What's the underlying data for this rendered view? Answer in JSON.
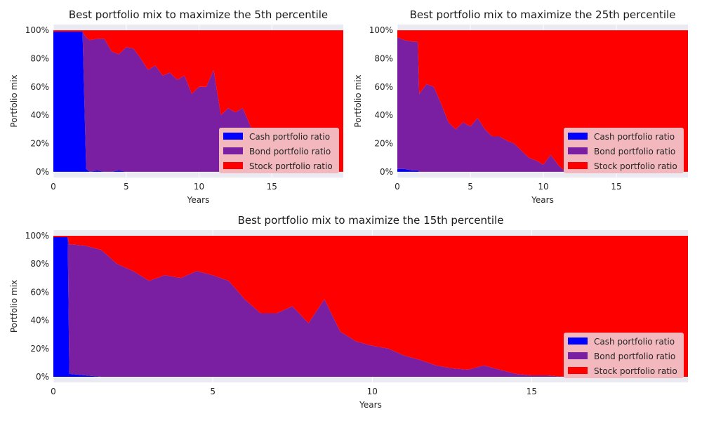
{
  "colors": {
    "background": "#eaeaf2",
    "grid": "#ffffff",
    "cash": "#0000ff",
    "bond": "#7a1fa2",
    "stock": "#ff0000",
    "legend_bg": "#f2b8bd"
  },
  "legend": {
    "placement": "lower right",
    "labels": [
      "Cash portfolio ratio",
      "Bond portfolio ratio",
      "Stock portfolio ratio"
    ]
  },
  "chart_data": [
    {
      "type": "area",
      "stacked": true,
      "title": "Best portfolio mix to maximize the 5th percentile",
      "xlabel": "Years",
      "ylabel": "Portfolio mix",
      "xlim": [
        0,
        19.9
      ],
      "ylim": [
        -0.04,
        1.04
      ],
      "xticks": [
        0,
        5,
        10,
        15
      ],
      "yticks": [
        "0%",
        "20%",
        "40%",
        "60%",
        "80%",
        "100%"
      ],
      "grid": true,
      "legend": "lower right",
      "x": [
        0,
        0.5,
        1.0,
        1.5,
        2.0,
        2.25,
        2.5,
        3.0,
        3.5,
        4.0,
        4.5,
        5.0,
        5.5,
        6.0,
        6.5,
        7.0,
        7.5,
        8.0,
        8.5,
        9.0,
        9.5,
        10.0,
        10.5,
        11.0,
        11.5,
        12.0,
        12.5,
        13.0,
        13.5,
        14.0,
        14.5,
        15.0,
        15.5,
        16.0,
        17.0,
        18.0,
        19.0,
        19.9
      ],
      "series": [
        {
          "name": "Cash portfolio ratio",
          "values": [
            0.99,
            0.99,
            0.99,
            0.99,
            0.99,
            0.02,
            0,
            0.01,
            0,
            0,
            0.01,
            0,
            0,
            0,
            0,
            0,
            0,
            0,
            0,
            0,
            0,
            0,
            0,
            0,
            0,
            0,
            0,
            0,
            0,
            0,
            0,
            0,
            0,
            0,
            0,
            0,
            0,
            0
          ]
        },
        {
          "name": "Bond portfolio ratio",
          "values": [
            0,
            0,
            0,
            0,
            0,
            0.93,
            0.93,
            0.93,
            0.94,
            0.85,
            0.82,
            0.88,
            0.87,
            0.8,
            0.72,
            0.75,
            0.68,
            0.7,
            0.65,
            0.68,
            0.55,
            0.6,
            0.6,
            0.72,
            0.4,
            0.45,
            0.42,
            0.45,
            0.33,
            0.22,
            0.12,
            0.05,
            0.08,
            0,
            0,
            0,
            0,
            0
          ]
        },
        {
          "name": "Stock portfolio ratio",
          "values": [
            0.01,
            0.01,
            0.01,
            0.01,
            0.01,
            0.05,
            0.07,
            0.06,
            0.06,
            0.15,
            0.17,
            0.12,
            0.13,
            0.2,
            0.28,
            0.25,
            0.32,
            0.3,
            0.35,
            0.32,
            0.45,
            0.4,
            0.4,
            0.28,
            0.6,
            0.55,
            0.58,
            0.55,
            0.67,
            0.78,
            0.88,
            0.95,
            0.92,
            1.0,
            1.0,
            1.0,
            1.0,
            1.0
          ]
        }
      ]
    },
    {
      "type": "area",
      "stacked": true,
      "title": "Best portfolio mix to maximize the 25th percentile",
      "xlabel": "Years",
      "ylabel": "Portfolio mix",
      "xlim": [
        0,
        19.9
      ],
      "ylim": [
        -0.04,
        1.04
      ],
      "xticks": [
        0,
        5,
        10,
        15
      ],
      "yticks": [
        "0%",
        "20%",
        "40%",
        "60%",
        "80%",
        "100%"
      ],
      "grid": true,
      "legend": "lower right",
      "x": [
        0,
        0.5,
        1.0,
        1.4,
        1.5,
        2.0,
        2.5,
        3.0,
        3.5,
        4.0,
        4.5,
        5.0,
        5.5,
        6.0,
        6.5,
        7.0,
        7.5,
        8.0,
        8.5,
        9.0,
        9.5,
        10.0,
        10.5,
        11.0,
        11.5,
        12.0,
        12.5,
        13.0,
        13.5,
        14.0,
        15.0,
        16.0,
        17.0,
        18.0,
        19.0,
        19.9
      ],
      "series": [
        {
          "name": "Cash portfolio ratio",
          "values": [
            0.02,
            0.02,
            0.01,
            0.01,
            0,
            0,
            0,
            0,
            0,
            0,
            0,
            0,
            0,
            0,
            0,
            0,
            0,
            0,
            0,
            0,
            0,
            0,
            0,
            0,
            0,
            0,
            0,
            0,
            0,
            0,
            0,
            0,
            0,
            0,
            0,
            0
          ]
        },
        {
          "name": "Bond portfolio ratio",
          "values": [
            0.93,
            0.91,
            0.91,
            0.91,
            0.55,
            0.62,
            0.6,
            0.48,
            0.35,
            0.3,
            0.35,
            0.32,
            0.38,
            0.3,
            0.25,
            0.25,
            0.22,
            0.2,
            0.15,
            0.1,
            0.08,
            0.05,
            0.12,
            0.05,
            0.0,
            0.12,
            0.05,
            0,
            0,
            0,
            0,
            0,
            0,
            0,
            0,
            0
          ]
        },
        {
          "name": "Stock portfolio ratio",
          "values": [
            0.05,
            0.07,
            0.08,
            0.08,
            0.45,
            0.38,
            0.4,
            0.52,
            0.65,
            0.7,
            0.65,
            0.68,
            0.62,
            0.7,
            0.75,
            0.75,
            0.78,
            0.8,
            0.85,
            0.9,
            0.92,
            0.95,
            0.88,
            0.95,
            1.0,
            0.88,
            0.95,
            1.0,
            1.0,
            1.0,
            1.0,
            1.0,
            1.0,
            1.0,
            1.0,
            1.0
          ]
        }
      ]
    },
    {
      "type": "area",
      "stacked": true,
      "title": "Best portfolio mix to maximize the 15th percentile",
      "xlabel": "Years",
      "ylabel": "Portfolio mix",
      "xlim": [
        0,
        19.9
      ],
      "ylim": [
        -0.04,
        1.04
      ],
      "xticks": [
        0,
        5,
        10,
        15
      ],
      "yticks": [
        "0%",
        "20%",
        "40%",
        "60%",
        "80%",
        "100%"
      ],
      "grid": true,
      "legend": "lower right",
      "x": [
        0,
        0.45,
        0.5,
        1.0,
        1.5,
        2.0,
        2.5,
        3.0,
        3.5,
        4.0,
        4.5,
        5.0,
        5.5,
        6.0,
        6.5,
        7.0,
        7.5,
        8.0,
        8.5,
        9.0,
        9.5,
        10.0,
        10.5,
        11.0,
        11.5,
        12.0,
        12.5,
        13.0,
        13.5,
        14.0,
        14.5,
        15.0,
        15.5,
        16.0,
        17.0,
        18.0,
        19.0,
        19.9
      ],
      "series": [
        {
          "name": "Cash portfolio ratio",
          "values": [
            0.99,
            0.99,
            0.02,
            0.01,
            0,
            0,
            0,
            0,
            0,
            0,
            0,
            0,
            0,
            0,
            0,
            0,
            0,
            0,
            0,
            0,
            0,
            0,
            0,
            0,
            0,
            0,
            0,
            0,
            0,
            0,
            0,
            0,
            0,
            0,
            0,
            0,
            0,
            0
          ]
        },
        {
          "name": "Bond portfolio ratio",
          "values": [
            0,
            0,
            0.92,
            0.92,
            0.9,
            0.8,
            0.75,
            0.68,
            0.72,
            0.7,
            0.75,
            0.72,
            0.68,
            0.55,
            0.45,
            0.45,
            0.5,
            0.38,
            0.55,
            0.32,
            0.25,
            0.22,
            0.2,
            0.15,
            0.12,
            0.08,
            0.06,
            0.05,
            0.08,
            0.05,
            0.02,
            0.01,
            0.01,
            0,
            0,
            0,
            0,
            0
          ]
        },
        {
          "name": "Stock portfolio ratio",
          "values": [
            0.01,
            0.01,
            0.06,
            0.07,
            0.1,
            0.2,
            0.25,
            0.32,
            0.28,
            0.3,
            0.25,
            0.28,
            0.32,
            0.45,
            0.55,
            0.55,
            0.5,
            0.62,
            0.45,
            0.68,
            0.75,
            0.78,
            0.8,
            0.85,
            0.88,
            0.92,
            0.94,
            0.95,
            0.92,
            0.95,
            0.98,
            0.99,
            0.99,
            1.0,
            1.0,
            1.0,
            1.0,
            1.0
          ]
        }
      ]
    }
  ]
}
